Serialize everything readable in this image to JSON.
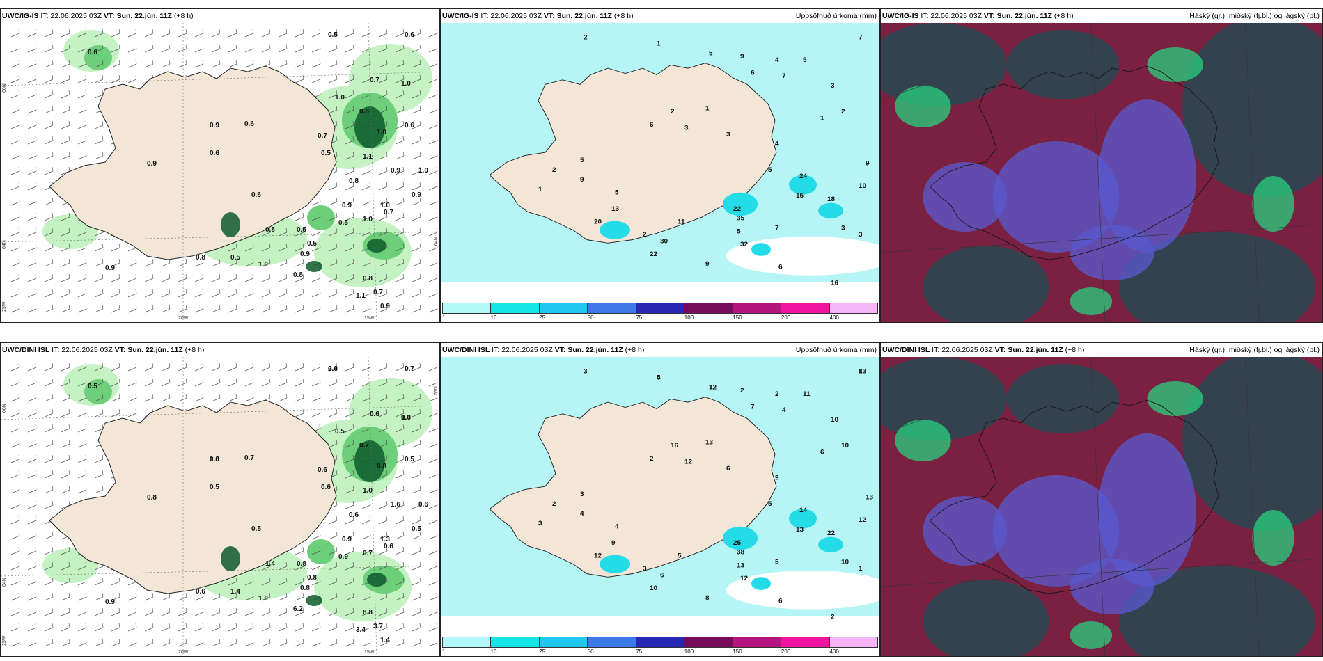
{
  "panels": [
    {
      "id": "p1",
      "model": "UWC/IG-IS",
      "init_prefix": "IT:",
      "init": "22.06.2025 03Z",
      "valid_prefix": "VT:",
      "valid": "Sun. 22.jún. 11Z",
      "lead": "(+8 h)",
      "right_title": "",
      "type": "wind",
      "lat_labels": [
        "66N",
        "64N",
        "25W"
      ],
      "lon_labels": [
        "20W",
        "15W"
      ],
      "right_lat_labels": [
        "64N"
      ],
      "values": [
        "0.5",
        "0.6",
        "0.6",
        "0.7",
        "1.0",
        "0.9",
        "0.6",
        "0.9",
        "1.0",
        "0.6",
        "0.7",
        "1.0",
        "0.6",
        "0.5",
        "1.1",
        "0.9",
        "1.0",
        "0.6",
        "0.9",
        "1.0",
        "0.7",
        "0.5",
        "0.8",
        "1.0",
        "0.5",
        "0.5",
        "0.5",
        "1.0",
        "0.8",
        "0.8",
        "0.7",
        "1.1",
        "0.9",
        "0.6",
        "0.8",
        "0.9",
        "0.8",
        "0.9",
        "0.9"
      ]
    },
    {
      "id": "p2",
      "model": "UWC/IG-IS",
      "init_prefix": "IT:",
      "init": "22.06.2025 03Z",
      "valid_prefix": "VT:",
      "valid": "Sun. 22.jún. 11Z",
      "lead": "(+8 h)",
      "right_title": "Uppsöfnuð úrkoma (mm)",
      "type": "precip",
      "values": [
        "2",
        "1",
        "7",
        "5",
        "9",
        "4",
        "5",
        "6",
        "7",
        "3",
        "2",
        "1",
        "2",
        "1",
        "6",
        "3",
        "3",
        "4",
        "5",
        "5",
        "2",
        "1",
        "9",
        "5",
        "13",
        "20",
        "2",
        "11",
        "22",
        "30",
        "22",
        "35",
        "5",
        "32",
        "7",
        "15",
        "24",
        "18",
        "10",
        "9",
        "3",
        "9",
        "6",
        "16",
        "3"
      ]
    },
    {
      "id": "p3",
      "model": "UWC/IG-IS",
      "init_prefix": "IT:",
      "init": "22.06.2025 03Z",
      "valid_prefix": "VT:",
      "valid": "Sun. 22.jún. 11Z",
      "lead": "(+8 h)",
      "right_title": "Háský (gr.), miðský (fj.bl.) og lágský (bl.)",
      "type": "cloud"
    },
    {
      "id": "p4",
      "model": "UWC/DINI ISL",
      "init_prefix": "IT:",
      "init": "22.06.2025 03Z",
      "valid_prefix": "VT:",
      "valid": "Sun. 22.jún. 11Z",
      "lead": "(+8 h)",
      "right_title": "",
      "type": "wind",
      "lat_labels": [
        "66N",
        "64N",
        "25W"
      ],
      "lon_labels": [
        "20W",
        "15W"
      ],
      "right_lat_labels": [
        "65N"
      ],
      "values": [
        "0.6",
        "0.7",
        "0.5",
        "0.6",
        "1.0",
        "0.8",
        "0.7",
        "0.8",
        "0.5",
        "0.7",
        "0.6",
        "0.8",
        "0.5",
        "0.6",
        "1.0",
        "1.6",
        "0.6",
        "0.5",
        "0.9",
        "0.7",
        "0.6",
        "0.9",
        "0.6",
        "1.3",
        "0.8",
        "0.8",
        "1.4",
        "1.0",
        "6.2",
        "8.8",
        "3.7",
        "3.4",
        "1.4",
        "0.5",
        "0.6",
        "0.9",
        "1.4",
        "0.5",
        "0.8",
        "2.0",
        "0.7",
        "0.5",
        "0.6",
        "0.6",
        "1.0"
      ]
    },
    {
      "id": "p5",
      "model": "UWC/DINI ISL",
      "init_prefix": "IT:",
      "init": "22.06.2025 03Z",
      "valid_prefix": "VT:",
      "valid": "Sun. 22.jún. 11Z",
      "lead": "(+8 h)",
      "right_title": "Uppsöfnuð úrkoma (mm)",
      "type": "precip",
      "values": [
        "3",
        "5",
        "8",
        "1",
        "2",
        "2",
        "11",
        "7",
        "4",
        "10",
        "10",
        "6",
        "16",
        "13",
        "2",
        "12",
        "6",
        "9",
        "5",
        "3",
        "2",
        "3",
        "4",
        "4",
        "9",
        "12",
        "3",
        "5",
        "10",
        "6",
        "25",
        "38",
        "13",
        "12",
        "5",
        "13",
        "14",
        "22",
        "12",
        "13",
        "10",
        "8",
        "6",
        "2",
        "1",
        "3",
        "4",
        "13",
        "12"
      ]
    },
    {
      "id": "p6",
      "model": "UWC/DINI ISL",
      "init_prefix": "IT:",
      "init": "22.06.2025 03Z",
      "valid_prefix": "VT:",
      "valid": "Sun. 22.jún. 11Z",
      "lead": "(+8 h)",
      "right_title": "Háský (gr.), miðský (fj.bl.) og lágský (bl.)",
      "type": "cloud"
    }
  ],
  "colorbar": {
    "ticks": [
      "1",
      "10",
      "25",
      "50",
      "75",
      "100",
      "150",
      "200",
      "400"
    ],
    "colors": [
      "#b3f8f8",
      "#14e6e6",
      "#1ec8f0",
      "#3c78e6",
      "#2828b4",
      "#780a5a",
      "#b4147d",
      "#f014a0",
      "#f5b4f5"
    ]
  },
  "colors": {
    "land": "#f3e6d6",
    "sea_precip": "#b6f5f5",
    "precip_mid": "#24dce8",
    "green_light": "#c4f2c2",
    "green_mid": "#6ecf7a",
    "green_dark": "#0d5a2a",
    "cloud_dark": "#1d4e54",
    "cloud_maroon": "#7a2040",
    "cloud_blue": "#5a5ad0",
    "cloud_green": "#28d07e"
  }
}
